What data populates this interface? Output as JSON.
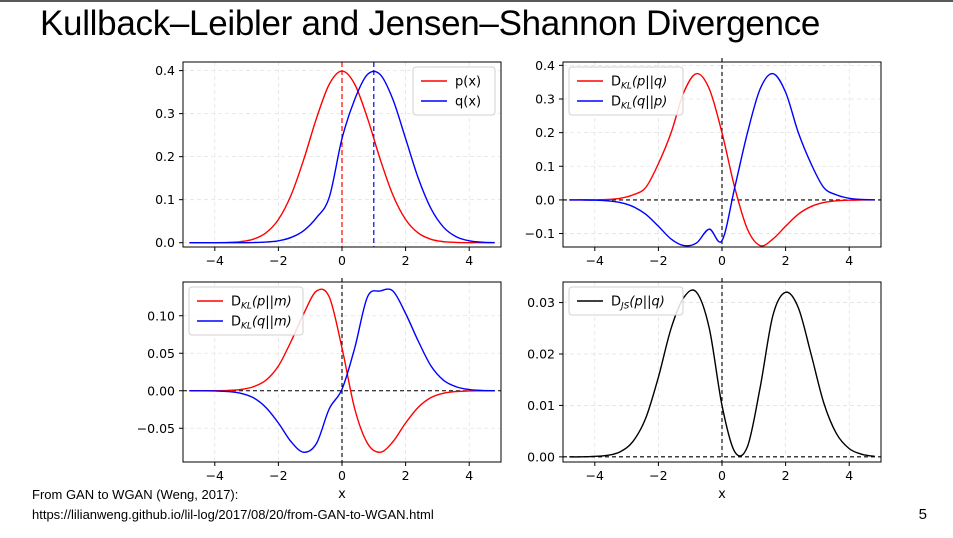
{
  "slide": {
    "title": "Kullback–Leibler and Jensen–Shannon Divergence",
    "source_line1": "From GAN to WGAN (Weng, 2017):",
    "source_line2": "https://lilianweng.github.io/lil-log/2017/08/20/from-GAN-to-WGAN.html",
    "page_number": "5"
  },
  "chart_data": [
    {
      "type": "line",
      "xlim": [
        -5,
        5
      ],
      "ylim": [
        -0.01,
        0.42
      ],
      "xticks": [
        "−4",
        "−2",
        "0",
        "2",
        "4"
      ],
      "yticks": [
        "0.0",
        "0.1",
        "0.2",
        "0.3",
        "0.4"
      ],
      "xlabel": "",
      "grid": true,
      "legend": "upper-right",
      "x": [
        -4.8,
        -4.4,
        -4.0,
        -3.6,
        -3.2,
        -2.8,
        -2.4,
        -2.0,
        -1.6,
        -1.2,
        -0.8,
        -0.4,
        0.0,
        0.4,
        0.8,
        1.2,
        1.6,
        2.0,
        2.4,
        2.8,
        3.2,
        3.6,
        4.0,
        4.4,
        4.8
      ],
      "series": [
        {
          "name": "p(x)",
          "color": "#ff0000",
          "values": [
            0.0,
            0.0001,
            0.0001,
            0.0006,
            0.0024,
            0.0079,
            0.0224,
            0.054,
            0.1109,
            0.1942,
            0.2897,
            0.3683,
            0.3989,
            0.3683,
            0.2897,
            0.1942,
            0.1109,
            0.054,
            0.0224,
            0.0079,
            0.0024,
            0.0006,
            0.0001,
            0.0001,
            0.0
          ]
        },
        {
          "name": "q(x)",
          "color": "#0000ff",
          "values": [
            0.0,
            0.0,
            0.0,
            0.0,
            0.0001,
            0.0004,
            0.0015,
            0.0044,
            0.0122,
            0.0283,
            0.0584,
            0.1057,
            0.242,
            0.3332,
            0.391,
            0.391,
            0.3332,
            0.242,
            0.1497,
            0.079,
            0.0355,
            0.0136,
            0.0044,
            0.0012,
            0.0003
          ]
        }
      ],
      "vlines": [
        {
          "x": 0,
          "color": "#ff0000"
        },
        {
          "x": 1,
          "color": "#0000ff"
        }
      ]
    },
    {
      "type": "line",
      "xlim": [
        -5,
        5
      ],
      "ylim": [
        -0.14,
        0.41
      ],
      "xticks": [
        "−4",
        "−2",
        "0",
        "2",
        "4"
      ],
      "yticks": [
        "−0.1",
        "0.0",
        "0.1",
        "0.2",
        "0.3",
        "0.4"
      ],
      "xlabel": "",
      "grid": true,
      "legend": "upper-left",
      "x": [
        -4.8,
        -4.4,
        -4.0,
        -3.6,
        -3.2,
        -2.8,
        -2.4,
        -2.0,
        -1.6,
        -1.2,
        -0.8,
        -0.4,
        0.0,
        0.4,
        0.8,
        1.2,
        1.6,
        2.0,
        2.4,
        2.8,
        3.2,
        3.6,
        4.0,
        4.4,
        4.8
      ],
      "series": [
        {
          "name": "D_KL(p||q)",
          "color": "#ff0000",
          "values": [
            0.0,
            0.0001,
            0.0002,
            0.0012,
            0.0049,
            0.015,
            0.0367,
            0.1078,
            0.2,
            0.32,
            0.3754,
            0.33,
            0.1995,
            0.0368,
            -0.0869,
            -0.1359,
            -0.1164,
            -0.0783,
            -0.0425,
            -0.0198,
            -0.008,
            -0.0028,
            -0.0008,
            -0.0002,
            0.0
          ]
        },
        {
          "name": "D_KL(q||p)",
          "color": "#0000ff",
          "values": [
            0.0,
            -0.0002,
            -0.0008,
            -0.0028,
            -0.008,
            -0.0198,
            -0.0425,
            -0.0783,
            -0.1164,
            -0.1359,
            -0.128,
            -0.0869,
            -0.121,
            0.0368,
            0.1994,
            0.33,
            0.3754,
            0.32,
            0.2,
            0.1078,
            0.0367,
            0.015,
            0.0049,
            0.0012,
            0.0002
          ]
        }
      ],
      "hline": 0,
      "vline": 0
    },
    {
      "type": "line",
      "xlim": [
        -5,
        5
      ],
      "ylim": [
        -0.095,
        0.145
      ],
      "xticks": [
        "−4",
        "−2",
        "0",
        "2",
        "4"
      ],
      "yticks": [
        "−0.05",
        "0.00",
        "0.05",
        "0.10"
      ],
      "xlabel": "x",
      "grid": true,
      "legend": "upper-left",
      "x": [
        -4.8,
        -4.4,
        -4.0,
        -3.6,
        -3.2,
        -2.8,
        -2.4,
        -2.0,
        -1.6,
        -1.2,
        -0.8,
        -0.4,
        0.0,
        0.4,
        0.8,
        1.2,
        1.6,
        2.0,
        2.4,
        2.8,
        3.2,
        3.6,
        4.0,
        4.4,
        4.8
      ],
      "series": [
        {
          "name": "D_KL(p||m)",
          "color": "#ff0000",
          "values": [
            0.0,
            0.0,
            0.0001,
            0.0004,
            0.0016,
            0.0052,
            0.0138,
            0.033,
            0.066,
            0.103,
            0.133,
            0.125,
            0.057,
            -0.024,
            -0.07,
            -0.082,
            -0.068,
            -0.043,
            -0.022,
            -0.009,
            -0.0032,
            -0.001,
            -0.0003,
            -0.0001,
            0.0
          ]
        },
        {
          "name": "D_KL(q||m)",
          "color": "#0000ff",
          "values": [
            0.0,
            -0.0001,
            -0.0003,
            -0.001,
            -0.0032,
            -0.009,
            -0.022,
            -0.043,
            -0.068,
            -0.082,
            -0.07,
            -0.024,
            0.002,
            0.057,
            0.125,
            0.133,
            0.133,
            0.103,
            0.066,
            0.033,
            0.0138,
            0.0052,
            0.0016,
            0.0004,
            0.0001
          ]
        }
      ],
      "hline": 0,
      "vline": 0
    },
    {
      "type": "line",
      "xlim": [
        -5,
        5
      ],
      "ylim": [
        -0.001,
        0.034
      ],
      "xticks": [
        "−4",
        "−2",
        "0",
        "2",
        "4"
      ],
      "yticks": [
        "0.00",
        "0.01",
        "0.02",
        "0.03"
      ],
      "xlabel": "x",
      "grid": true,
      "legend": "upper-left",
      "x": [
        -4.8,
        -4.4,
        -4.0,
        -3.6,
        -3.2,
        -2.8,
        -2.4,
        -2.0,
        -1.6,
        -1.2,
        -0.8,
        -0.4,
        0.0,
        0.4,
        0.8,
        1.2,
        1.6,
        2.0,
        2.4,
        2.8,
        3.2,
        3.6,
        4.0,
        4.4,
        4.8
      ],
      "series": [
        {
          "name": "D_JS(p||q)",
          "color": "#000000",
          "values": [
            0.0,
            0.0,
            0.0001,
            0.0003,
            0.001,
            0.003,
            0.0075,
            0.0155,
            0.025,
            0.031,
            0.032,
            0.025,
            0.01,
            0.001,
            0.002,
            0.0135,
            0.0275,
            0.032,
            0.029,
            0.02,
            0.0105,
            0.0045,
            0.0016,
            0.0005,
            0.0001
          ]
        }
      ],
      "hline": 0,
      "vline": 0
    }
  ]
}
